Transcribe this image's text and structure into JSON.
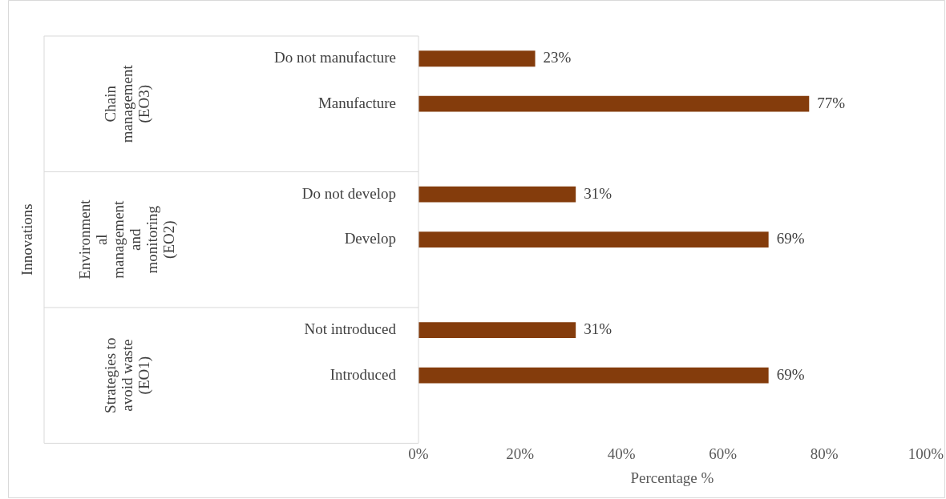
{
  "chart_data": {
    "type": "bar",
    "orientation": "horizontal",
    "xlabel": "Percentage %",
    "categories": [
      "Do not manufacture",
      "Manufacture",
      null,
      "Do not develop",
      "Develop",
      null,
      "Not introduced",
      "Introduced",
      null
    ],
    "values": [
      23,
      77,
      null,
      31,
      69,
      null,
      31,
      69,
      null
    ],
    "value_labels": [
      "23%",
      "77%",
      null,
      "31%",
      "69%",
      null,
      "31%",
      "69%",
      null
    ],
    "color": "#843c0c",
    "xlim": [
      0,
      100
    ],
    "xticks": [
      {
        "value": 0,
        "label": "0%"
      },
      {
        "value": 20,
        "label": "20%"
      },
      {
        "value": 40,
        "label": "40%"
      },
      {
        "value": 60,
        "label": "60%"
      },
      {
        "value": 80,
        "label": "80%"
      },
      {
        "value": 100,
        "label": "100%"
      }
    ],
    "grid": false,
    "legend": false,
    "annotations": [
      "Chain management (EO3)",
      "Environmental management and monitoring (EO2)",
      "Strategies to avoid waste (EO1)",
      "Innovations"
    ]
  }
}
